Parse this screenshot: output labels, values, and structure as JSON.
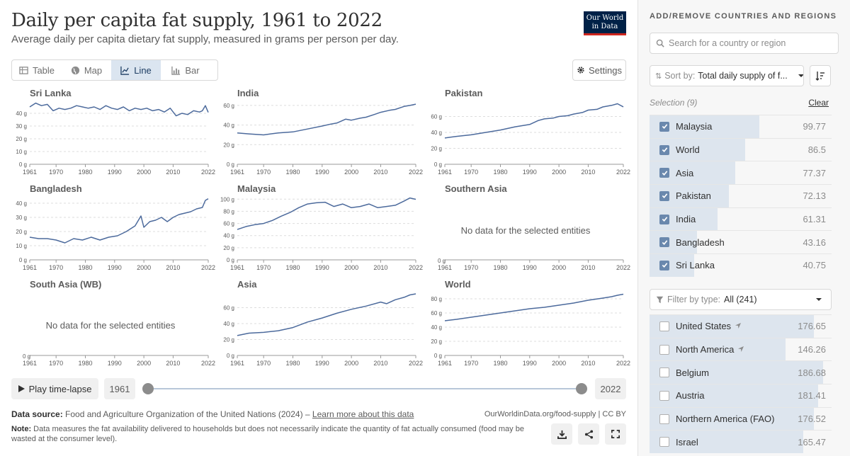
{
  "header": {
    "title": "Daily per capita fat supply, 1961 to 2022",
    "subtitle": "Average daily per capita dietary fat supply, measured in grams per person per day.",
    "logo_line1": "Our World",
    "logo_line2": "in Data"
  },
  "tabs": [
    {
      "label": "Table",
      "icon": "table-icon"
    },
    {
      "label": "Map",
      "icon": "globe-icon"
    },
    {
      "label": "Line",
      "icon": "line-chart-icon",
      "active": true
    },
    {
      "label": "Bar",
      "icon": "bar-chart-icon"
    }
  ],
  "settings_label": "Settings",
  "timeline": {
    "play_label": "Play time-lapse",
    "start_year": "1961",
    "end_year": "2022"
  },
  "footer": {
    "source_label": "Data source:",
    "source_text": "Food and Agriculture Organization of the United Nations (2024) – ",
    "source_link": "Learn more about this data",
    "site": "OurWorldinData.org/food-supply | CC BY",
    "note_label": "Note:",
    "note_text": "Data measures the fat availability delivered to households but does not necessarily indicate the quantity of fat actually consumed (food may be wasted at the consumer level)."
  },
  "sidebar": {
    "heading": "ADD/REMOVE COUNTRIES AND REGIONS",
    "search_placeholder": "Search for a country or region",
    "sort_prefix": "Sort by:",
    "sort_value": "Total daily supply of f...",
    "selection_label": "Selection (9)",
    "clear_label": "Clear",
    "selected": [
      {
        "name": "Malaysia",
        "value": "99.77",
        "num": 99.77
      },
      {
        "name": "World",
        "value": "86.5",
        "num": 86.5
      },
      {
        "name": "Asia",
        "value": "77.37",
        "num": 77.37
      },
      {
        "name": "Pakistan",
        "value": "72.13",
        "num": 72.13
      },
      {
        "name": "India",
        "value": "61.31",
        "num": 61.31
      },
      {
        "name": "Bangladesh",
        "value": "43.16",
        "num": 43.16
      },
      {
        "name": "Sri Lanka",
        "value": "40.75",
        "num": 40.75
      }
    ],
    "filter_prefix": "Filter by type:",
    "filter_value": "All (241)",
    "others": [
      {
        "name": "United States",
        "value": "176.65",
        "num": 176.65,
        "arrow": true
      },
      {
        "name": "North America",
        "value": "146.26",
        "num": 146.26,
        "arrow": true
      },
      {
        "name": "Belgium",
        "value": "186.68",
        "num": 186.68
      },
      {
        "name": "Austria",
        "value": "181.41",
        "num": 181.41
      },
      {
        "name": "Northern America (FAO)",
        "value": "176.52",
        "num": 176.52
      },
      {
        "name": "Israel",
        "value": "165.47",
        "num": 165.47
      }
    ]
  },
  "colors": {
    "line": "#4c6a9c",
    "selected_bar": "#dde5ee",
    "checkbox": "#6a88ad",
    "logo_bg": "#002147",
    "logo_accent": "#ce261e"
  },
  "chart_data": {
    "type": "line",
    "unit": "g",
    "x_ticks": [
      "1961",
      "1970",
      "1980",
      "1990",
      "2000",
      "2010",
      "2022"
    ],
    "no_data_text": "No data for the selected entities",
    "panels": [
      {
        "name": "Sri Lanka",
        "ylim": [
          0,
          50
        ],
        "yticks": [
          0,
          10,
          20,
          30,
          40
        ],
        "x": [
          1961,
          1963,
          1965,
          1967,
          1969,
          1971,
          1973,
          1975,
          1977,
          1979,
          1981,
          1983,
          1985,
          1987,
          1989,
          1991,
          1993,
          1995,
          1997,
          1999,
          2001,
          2003,
          2005,
          2007,
          2009,
          2011,
          2013,
          2015,
          2017,
          2019,
          2020,
          2021,
          2022
        ],
        "y": [
          45,
          48,
          46,
          47,
          42,
          44,
          43,
          44,
          46,
          45,
          44,
          45,
          43,
          46,
          44,
          43,
          45,
          42,
          44,
          43,
          44,
          42,
          43,
          41,
          44,
          38,
          40,
          39,
          42,
          41,
          42,
          46,
          40.75
        ]
      },
      {
        "name": "India",
        "ylim": [
          0,
          65
        ],
        "yticks": [
          0,
          20,
          40,
          60
        ],
        "x": [
          1961,
          1965,
          1970,
          1975,
          1980,
          1985,
          1990,
          1993,
          1995,
          1998,
          2000,
          2003,
          2005,
          2008,
          2010,
          2013,
          2015,
          2018,
          2020,
          2022
        ],
        "y": [
          32,
          31,
          30,
          32,
          33,
          36,
          39,
          41,
          42,
          46,
          45,
          47,
          48,
          51,
          53,
          55,
          56,
          59,
          60,
          61.31
        ]
      },
      {
        "name": "Pakistan",
        "ylim": [
          0,
          80
        ],
        "yticks": [
          0,
          20,
          40,
          60
        ],
        "x": [
          1961,
          1965,
          1970,
          1975,
          1980,
          1985,
          1990,
          1993,
          1995,
          1998,
          2000,
          2003,
          2005,
          2008,
          2010,
          2013,
          2015,
          2018,
          2020,
          2022
        ],
        "y": [
          33,
          35,
          37,
          40,
          43,
          47,
          50,
          55,
          57,
          58,
          60,
          61,
          63,
          65,
          68,
          69,
          72,
          74,
          76,
          72.13
        ]
      },
      {
        "name": "Bangladesh",
        "ylim": [
          0,
          45
        ],
        "yticks": [
          0,
          10,
          20,
          30,
          40
        ],
        "x": [
          1961,
          1964,
          1967,
          1970,
          1973,
          1976,
          1979,
          1982,
          1985,
          1988,
          1991,
          1994,
          1997,
          1999,
          2000,
          2002,
          2004,
          2006,
          2008,
          2010,
          2012,
          2014,
          2016,
          2018,
          2020,
          2021,
          2022
        ],
        "y": [
          16,
          15,
          15,
          14,
          12,
          15,
          14,
          16,
          14,
          16,
          17,
          20,
          24,
          31,
          23,
          27,
          28,
          30,
          27,
          30,
          32,
          33,
          34,
          36,
          37,
          42,
          43.16
        ]
      },
      {
        "name": "Malaysia",
        "ylim": [
          0,
          105
        ],
        "yticks": [
          0,
          20,
          40,
          60,
          80,
          100
        ],
        "x": [
          1961,
          1964,
          1967,
          1970,
          1973,
          1976,
          1979,
          1982,
          1985,
          1988,
          1991,
          1994,
          1997,
          2000,
          2003,
          2006,
          2009,
          2012,
          2015,
          2018,
          2020,
          2022
        ],
        "y": [
          50,
          55,
          58,
          60,
          65,
          72,
          78,
          86,
          92,
          94,
          95,
          88,
          92,
          86,
          88,
          92,
          86,
          88,
          90,
          97,
          102,
          99.77
        ]
      },
      {
        "name": "Southern Asia",
        "no_data": true
      },
      {
        "name": "South Asia (WB)",
        "no_data": true
      },
      {
        "name": "Asia",
        "ylim": [
          0,
          80
        ],
        "yticks": [
          0,
          20,
          40,
          60
        ],
        "x": [
          1961,
          1965,
          1970,
          1975,
          1980,
          1985,
          1990,
          1995,
          2000,
          2005,
          2010,
          2012,
          2015,
          2018,
          2020,
          2022
        ],
        "y": [
          25,
          28,
          29,
          31,
          35,
          42,
          47,
          53,
          58,
          62,
          67,
          65,
          70,
          73,
          76,
          77.37
        ]
      },
      {
        "name": "World",
        "ylim": [
          0,
          90
        ],
        "yticks": [
          0,
          20,
          40,
          60,
          80
        ],
        "x": [
          1961,
          1965,
          1970,
          1975,
          1980,
          1985,
          1990,
          1995,
          2000,
          2005,
          2010,
          2015,
          2018,
          2020,
          2022
        ],
        "y": [
          49,
          51,
          54,
          57,
          60,
          63,
          66,
          68,
          71,
          74,
          78,
          81,
          83,
          85,
          86.5
        ]
      }
    ]
  }
}
